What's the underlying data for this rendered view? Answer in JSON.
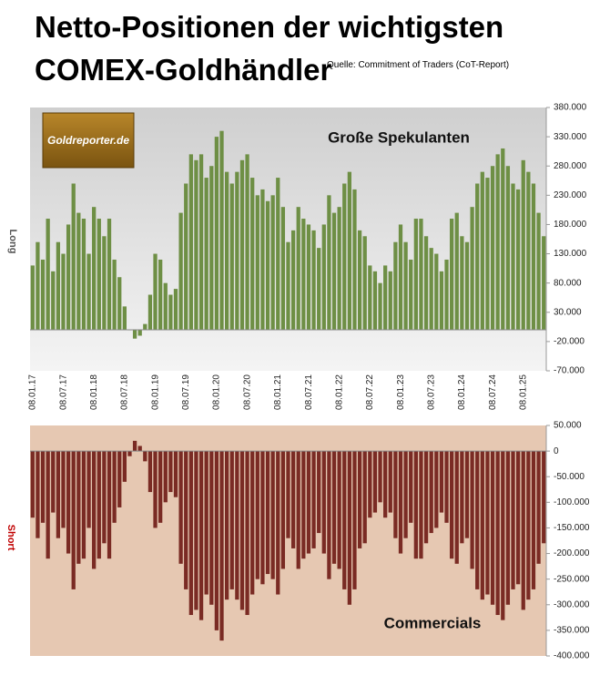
{
  "chart_data": [
    {
      "type": "bar",
      "title": "Netto-Positionen der wichtigsten COMEX-Goldhändler",
      "source": "Quelle: Commitment of Traders (CoT-Report)",
      "logo": "Goldreporter.de",
      "annotation": "Große Spekulanten",
      "y_label": "Long",
      "color": "#6e8f45",
      "categories": [
        "08.01.17",
        null,
        null,
        null,
        null,
        null,
        "08.07.17",
        null,
        null,
        null,
        null,
        null,
        "08.01.18",
        null,
        null,
        null,
        null,
        null,
        "08.07.18",
        null,
        null,
        null,
        null,
        null,
        "08.01.19",
        null,
        null,
        null,
        null,
        null,
        "08.07.19",
        null,
        null,
        null,
        null,
        null,
        "08.01.20",
        null,
        null,
        null,
        null,
        null,
        "08.07.20",
        null,
        null,
        null,
        null,
        null,
        "08.01.21",
        null,
        null,
        null,
        null,
        null,
        "08.07.21",
        null,
        null,
        null,
        null,
        null,
        "08.01.22",
        null,
        null,
        null,
        null,
        null,
        "08.07.22",
        null,
        null,
        null,
        null,
        null,
        "08.01.23",
        null,
        null,
        null,
        null,
        null,
        "08.07.23",
        null,
        null,
        null,
        null,
        null,
        "08.01.24",
        null,
        null,
        null,
        null,
        null,
        "08.07.24",
        null,
        null,
        null,
        null,
        null,
        "08.01.25",
        null,
        null,
        null,
        null
      ],
      "values": [
        110000,
        150000,
        120000,
        190000,
        100000,
        150000,
        130000,
        180000,
        250000,
        200000,
        190000,
        130000,
        210000,
        190000,
        160000,
        190000,
        120000,
        90000,
        40000,
        0,
        -15000,
        -10000,
        10000,
        60000,
        130000,
        120000,
        80000,
        60000,
        70000,
        200000,
        250000,
        300000,
        290000,
        300000,
        260000,
        280000,
        330000,
        340000,
        270000,
        250000,
        270000,
        290000,
        300000,
        260000,
        230000,
        240000,
        220000,
        230000,
        260000,
        210000,
        150000,
        170000,
        210000,
        190000,
        180000,
        170000,
        140000,
        180000,
        230000,
        200000,
        210000,
        250000,
        270000,
        240000,
        170000,
        160000,
        110000,
        100000,
        80000,
        110000,
        100000,
        150000,
        180000,
        150000,
        120000,
        190000,
        190000,
        160000,
        140000,
        130000,
        100000,
        120000,
        190000,
        200000,
        160000,
        150000,
        210000,
        250000,
        270000,
        260000,
        280000,
        300000,
        310000,
        280000,
        250000,
        240000,
        290000,
        270000,
        250000,
        200000,
        160000
      ],
      "ylim": [
        -70000,
        380000
      ],
      "yticks": [
        {
          "value": 380000,
          "label": "380.000"
        },
        {
          "value": 330000,
          "label": "330.000"
        },
        {
          "value": 280000,
          "label": "280.000"
        },
        {
          "value": 230000,
          "label": "230.000"
        },
        {
          "value": 180000,
          "label": "180.000"
        },
        {
          "value": 130000,
          "label": "130.000"
        },
        {
          "value": 80000,
          "label": "80.000"
        },
        {
          "value": 30000,
          "label": "30.000"
        },
        {
          "value": -20000,
          "label": "-20.000"
        },
        {
          "value": -70000,
          "label": "-70.000"
        }
      ]
    },
    {
      "type": "bar",
      "annotation": "Commercials",
      "y_label": "Short",
      "color": "#7a2b24",
      "values": [
        -130000,
        -170000,
        -140000,
        -210000,
        -120000,
        -170000,
        -150000,
        -200000,
        -270000,
        -220000,
        -210000,
        -150000,
        -230000,
        -210000,
        -180000,
        -210000,
        -140000,
        -110000,
        -60000,
        -10000,
        20000,
        10000,
        -20000,
        -80000,
        -150000,
        -140000,
        -100000,
        -80000,
        -90000,
        -220000,
        -270000,
        -320000,
        -310000,
        -330000,
        -280000,
        -300000,
        -350000,
        -370000,
        -290000,
        -270000,
        -290000,
        -310000,
        -320000,
        -280000,
        -250000,
        -260000,
        -240000,
        -250000,
        -280000,
        -230000,
        -170000,
        -190000,
        -230000,
        -210000,
        -200000,
        -190000,
        -160000,
        -200000,
        -250000,
        -220000,
        -230000,
        -270000,
        -300000,
        -270000,
        -190000,
        -180000,
        -130000,
        -120000,
        -100000,
        -130000,
        -120000,
        -170000,
        -200000,
        -170000,
        -140000,
        -210000,
        -210000,
        -180000,
        -160000,
        -150000,
        -120000,
        -140000,
        -210000,
        -220000,
        -180000,
        -170000,
        -230000,
        -270000,
        -290000,
        -280000,
        -300000,
        -320000,
        -330000,
        -300000,
        -270000,
        -260000,
        -310000,
        -290000,
        -270000,
        -220000,
        -180000
      ],
      "ylim": [
        -400000,
        50000
      ],
      "yticks": [
        {
          "value": 50000,
          "label": "50.000"
        },
        0,
        {
          "value": -50000,
          "label": "-50.000"
        },
        {
          "value": -100000,
          "label": "-100.000"
        },
        {
          "value": -150000,
          "label": "-150.000"
        },
        {
          "value": -200000,
          "label": "-200.000"
        },
        {
          "value": -250000,
          "label": "-250.000"
        },
        {
          "value": -300000,
          "label": "-300.000"
        },
        {
          "value": -350000,
          "label": "-350.000"
        },
        {
          "value": -400000,
          "label": "-400.000"
        }
      ]
    }
  ]
}
